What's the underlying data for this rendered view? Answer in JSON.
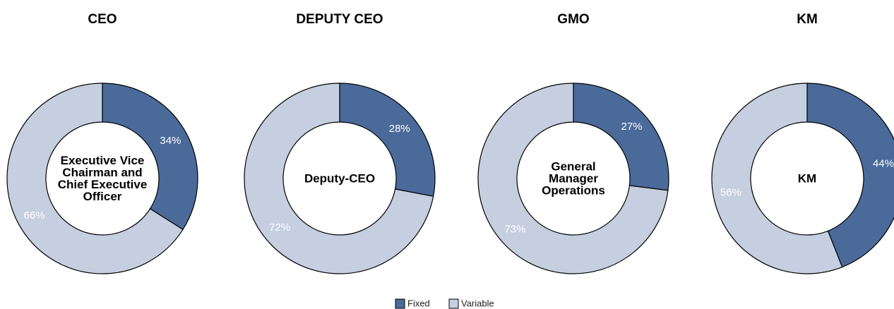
{
  "chart_data": [
    {
      "type": "pie",
      "title": "CEO",
      "center_label": "Executive Vice Chairman and Chief Executive Officer",
      "categories": [
        "Fixed",
        "Variable"
      ],
      "values": [
        34,
        66
      ],
      "value_labels": [
        "34%",
        "66%"
      ],
      "colors": [
        "#4a6a9a",
        "#c5cfe0"
      ]
    },
    {
      "type": "pie",
      "title": "DEPUTY CEO",
      "center_label": "Deputy-CEO",
      "categories": [
        "Fixed",
        "Variable"
      ],
      "values": [
        28,
        72
      ],
      "value_labels": [
        "28%",
        "72%"
      ],
      "colors": [
        "#4a6a9a",
        "#c5cfe0"
      ]
    },
    {
      "type": "pie",
      "title": "GMO",
      "center_label": "General Manager Operations",
      "categories": [
        "Fixed",
        "Variable"
      ],
      "values": [
        27,
        73
      ],
      "value_labels": [
        "27%",
        "73%"
      ],
      "colors": [
        "#4a6a9a",
        "#c5cfe0"
      ]
    },
    {
      "type": "pie",
      "title": "KM",
      "center_label": "KM",
      "categories": [
        "Fixed",
        "Variable"
      ],
      "values": [
        44,
        56
      ],
      "value_labels": [
        "44%",
        "56%"
      ],
      "colors": [
        "#4a6a9a",
        "#c5cfe0"
      ]
    }
  ]
}
